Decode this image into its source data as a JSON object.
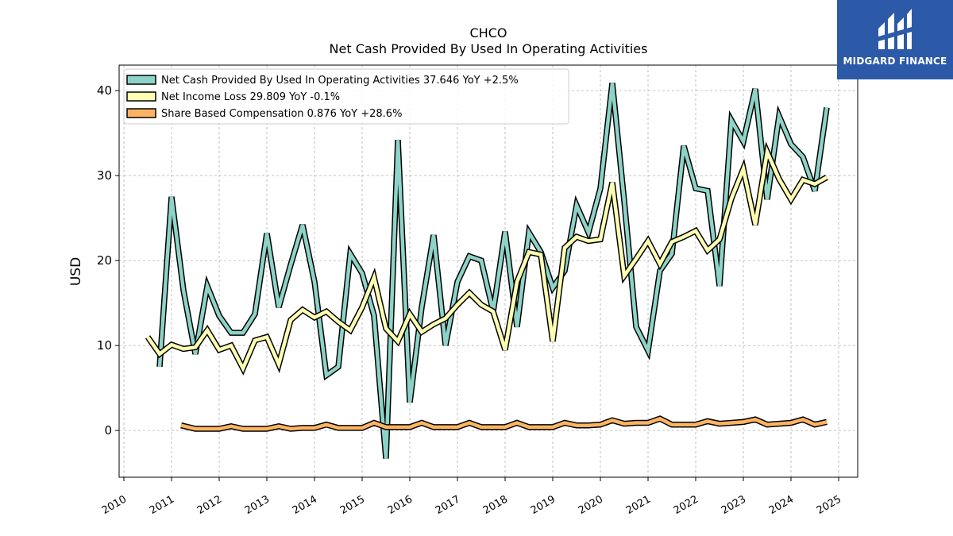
{
  "chart_data": {
    "type": "line",
    "title": "CHCO",
    "subtitle": "Net Cash Provided By Used In Operating Activities",
    "xlabel": "",
    "ylabel": "USD",
    "xlim": [
      2009.9,
      2025.4
    ],
    "ylim": [
      -5.5,
      43
    ],
    "x_ticks": [
      "2010",
      "2011",
      "2012",
      "2013",
      "2014",
      "2015",
      "2016",
      "2017",
      "2018",
      "2019",
      "2020",
      "2021",
      "2022",
      "2023",
      "2024",
      "2025"
    ],
    "y_ticks": [
      0,
      10,
      20,
      30,
      40
    ],
    "grid": true,
    "legend_position": "top-left",
    "series": [
      {
        "name": "Net Cash Provided By Used In Operating Activities  37.646 YoY +2.5%",
        "color": "#8dd3c7",
        "points": [
          [
            2010.75,
            7.5
          ],
          [
            2011.0,
            27.5
          ],
          [
            2011.25,
            16.5
          ],
          [
            2011.5,
            9.0
          ],
          [
            2011.75,
            17.0
          ],
          [
            2012.0,
            13.5
          ],
          [
            2012.25,
            11.5
          ],
          [
            2012.5,
            11.5
          ],
          [
            2012.75,
            13.7
          ],
          [
            2013.0,
            23.2
          ],
          [
            2013.25,
            14.5
          ],
          [
            2013.5,
            19.5
          ],
          [
            2013.75,
            24.2
          ],
          [
            2014.0,
            17.5
          ],
          [
            2014.25,
            6.5
          ],
          [
            2014.5,
            7.5
          ],
          [
            2014.75,
            20.8
          ],
          [
            2015.0,
            18.5
          ],
          [
            2015.25,
            13.5
          ],
          [
            2015.5,
            -3.3
          ],
          [
            2015.75,
            34.2
          ],
          [
            2016.0,
            3.3
          ],
          [
            2016.25,
            14.5
          ],
          [
            2016.5,
            23.0
          ],
          [
            2016.75,
            10.0
          ],
          [
            2017.0,
            17.5
          ],
          [
            2017.25,
            20.5
          ],
          [
            2017.5,
            20.0
          ],
          [
            2017.75,
            14.0
          ],
          [
            2018.0,
            23.4
          ],
          [
            2018.25,
            12.2
          ],
          [
            2018.5,
            23.3
          ],
          [
            2018.75,
            21.0
          ],
          [
            2019.0,
            16.8
          ],
          [
            2019.25,
            18.8
          ],
          [
            2019.5,
            26.5
          ],
          [
            2019.75,
            23.3
          ],
          [
            2020.0,
            28.5
          ],
          [
            2020.25,
            40.9
          ],
          [
            2020.5,
            27.0
          ],
          [
            2020.75,
            12.2
          ],
          [
            2021.0,
            9.4
          ],
          [
            2021.25,
            18.8
          ],
          [
            2021.5,
            20.8
          ],
          [
            2021.75,
            33.5
          ],
          [
            2022.0,
            28.5
          ],
          [
            2022.25,
            28.2
          ],
          [
            2022.5,
            17.0
          ],
          [
            2022.75,
            36.5
          ],
          [
            2023.0,
            34.0
          ],
          [
            2023.25,
            40.2
          ],
          [
            2023.5,
            27.2
          ],
          [
            2023.75,
            37.0
          ],
          [
            2024.0,
            33.7
          ],
          [
            2024.25,
            32.2
          ],
          [
            2024.5,
            28.2
          ],
          [
            2024.75,
            38.0
          ]
        ]
      },
      {
        "name": "Net Income Loss  29.809 YoY -0.1%",
        "color": "#ffffb3",
        "points": [
          [
            2010.5,
            11.0
          ],
          [
            2010.75,
            9.0
          ],
          [
            2011.0,
            10.1
          ],
          [
            2011.25,
            9.6
          ],
          [
            2011.5,
            9.8
          ],
          [
            2011.75,
            11.8
          ],
          [
            2012.0,
            9.5
          ],
          [
            2012.25,
            10.0
          ],
          [
            2012.5,
            7.3
          ],
          [
            2012.75,
            10.6
          ],
          [
            2013.0,
            11.0
          ],
          [
            2013.25,
            7.8
          ],
          [
            2013.5,
            13.0
          ],
          [
            2013.75,
            14.2
          ],
          [
            2014.0,
            13.3
          ],
          [
            2014.25,
            14.0
          ],
          [
            2014.5,
            12.8
          ],
          [
            2014.75,
            11.8
          ],
          [
            2015.0,
            14.5
          ],
          [
            2015.25,
            18.0
          ],
          [
            2015.5,
            12.0
          ],
          [
            2015.75,
            10.5
          ],
          [
            2016.0,
            13.7
          ],
          [
            2016.25,
            11.6
          ],
          [
            2016.5,
            12.5
          ],
          [
            2016.75,
            13.2
          ],
          [
            2017.0,
            14.8
          ],
          [
            2017.25,
            16.2
          ],
          [
            2017.5,
            14.8
          ],
          [
            2017.75,
            14.0
          ],
          [
            2018.0,
            9.5
          ],
          [
            2018.25,
            17.5
          ],
          [
            2018.5,
            21.0
          ],
          [
            2018.75,
            20.7
          ],
          [
            2019.0,
            10.5
          ],
          [
            2019.25,
            21.5
          ],
          [
            2019.5,
            22.8
          ],
          [
            2019.75,
            22.3
          ],
          [
            2020.0,
            22.5
          ],
          [
            2020.25,
            29.2
          ],
          [
            2020.5,
            18.2
          ],
          [
            2020.75,
            20.2
          ],
          [
            2021.0,
            22.3
          ],
          [
            2021.25,
            19.6
          ],
          [
            2021.5,
            22.2
          ],
          [
            2021.75,
            22.8
          ],
          [
            2022.0,
            23.5
          ],
          [
            2022.25,
            21.2
          ],
          [
            2022.5,
            22.5
          ],
          [
            2022.75,
            27.3
          ],
          [
            2023.0,
            30.8
          ],
          [
            2023.25,
            24.2
          ],
          [
            2023.5,
            32.8
          ],
          [
            2023.75,
            29.6
          ],
          [
            2024.0,
            27.2
          ],
          [
            2024.25,
            29.5
          ],
          [
            2024.5,
            29.0
          ],
          [
            2024.75,
            29.8
          ]
        ]
      },
      {
        "name": "Share Based Compensation  0.876 YoY +28.6%",
        "color": "#fdb462",
        "points": [
          [
            2011.2,
            0.6
          ],
          [
            2011.5,
            0.2
          ],
          [
            2011.75,
            0.2
          ],
          [
            2012.0,
            0.2
          ],
          [
            2012.25,
            0.5
          ],
          [
            2012.5,
            0.2
          ],
          [
            2012.75,
            0.2
          ],
          [
            2013.0,
            0.2
          ],
          [
            2013.25,
            0.5
          ],
          [
            2013.5,
            0.2
          ],
          [
            2013.75,
            0.3
          ],
          [
            2014.0,
            0.3
          ],
          [
            2014.25,
            0.7
          ],
          [
            2014.5,
            0.3
          ],
          [
            2014.75,
            0.3
          ],
          [
            2015.0,
            0.3
          ],
          [
            2015.25,
            0.9
          ],
          [
            2015.5,
            0.4
          ],
          [
            2015.75,
            0.4
          ],
          [
            2016.0,
            0.4
          ],
          [
            2016.25,
            0.9
          ],
          [
            2016.5,
            0.4
          ],
          [
            2016.75,
            0.4
          ],
          [
            2017.0,
            0.4
          ],
          [
            2017.25,
            0.9
          ],
          [
            2017.5,
            0.4
          ],
          [
            2017.75,
            0.4
          ],
          [
            2018.0,
            0.4
          ],
          [
            2018.25,
            0.9
          ],
          [
            2018.5,
            0.4
          ],
          [
            2018.75,
            0.4
          ],
          [
            2019.0,
            0.4
          ],
          [
            2019.25,
            0.9
          ],
          [
            2019.5,
            0.6
          ],
          [
            2019.75,
            0.6
          ],
          [
            2020.0,
            0.7
          ],
          [
            2020.25,
            1.2
          ],
          [
            2020.5,
            0.8
          ],
          [
            2020.75,
            0.9
          ],
          [
            2021.0,
            0.9
          ],
          [
            2021.25,
            1.4
          ],
          [
            2021.5,
            0.7
          ],
          [
            2021.75,
            0.7
          ],
          [
            2022.0,
            0.7
          ],
          [
            2022.25,
            1.1
          ],
          [
            2022.5,
            0.8
          ],
          [
            2022.75,
            0.9
          ],
          [
            2023.0,
            1.0
          ],
          [
            2023.25,
            1.3
          ],
          [
            2023.5,
            0.7
          ],
          [
            2023.75,
            0.8
          ],
          [
            2024.0,
            0.9
          ],
          [
            2024.25,
            1.3
          ],
          [
            2024.5,
            0.7
          ],
          [
            2024.75,
            1.0
          ]
        ]
      }
    ]
  },
  "logo": {
    "brand_text": "MIDGARD FINANCE",
    "color": "#2c5aa8"
  }
}
